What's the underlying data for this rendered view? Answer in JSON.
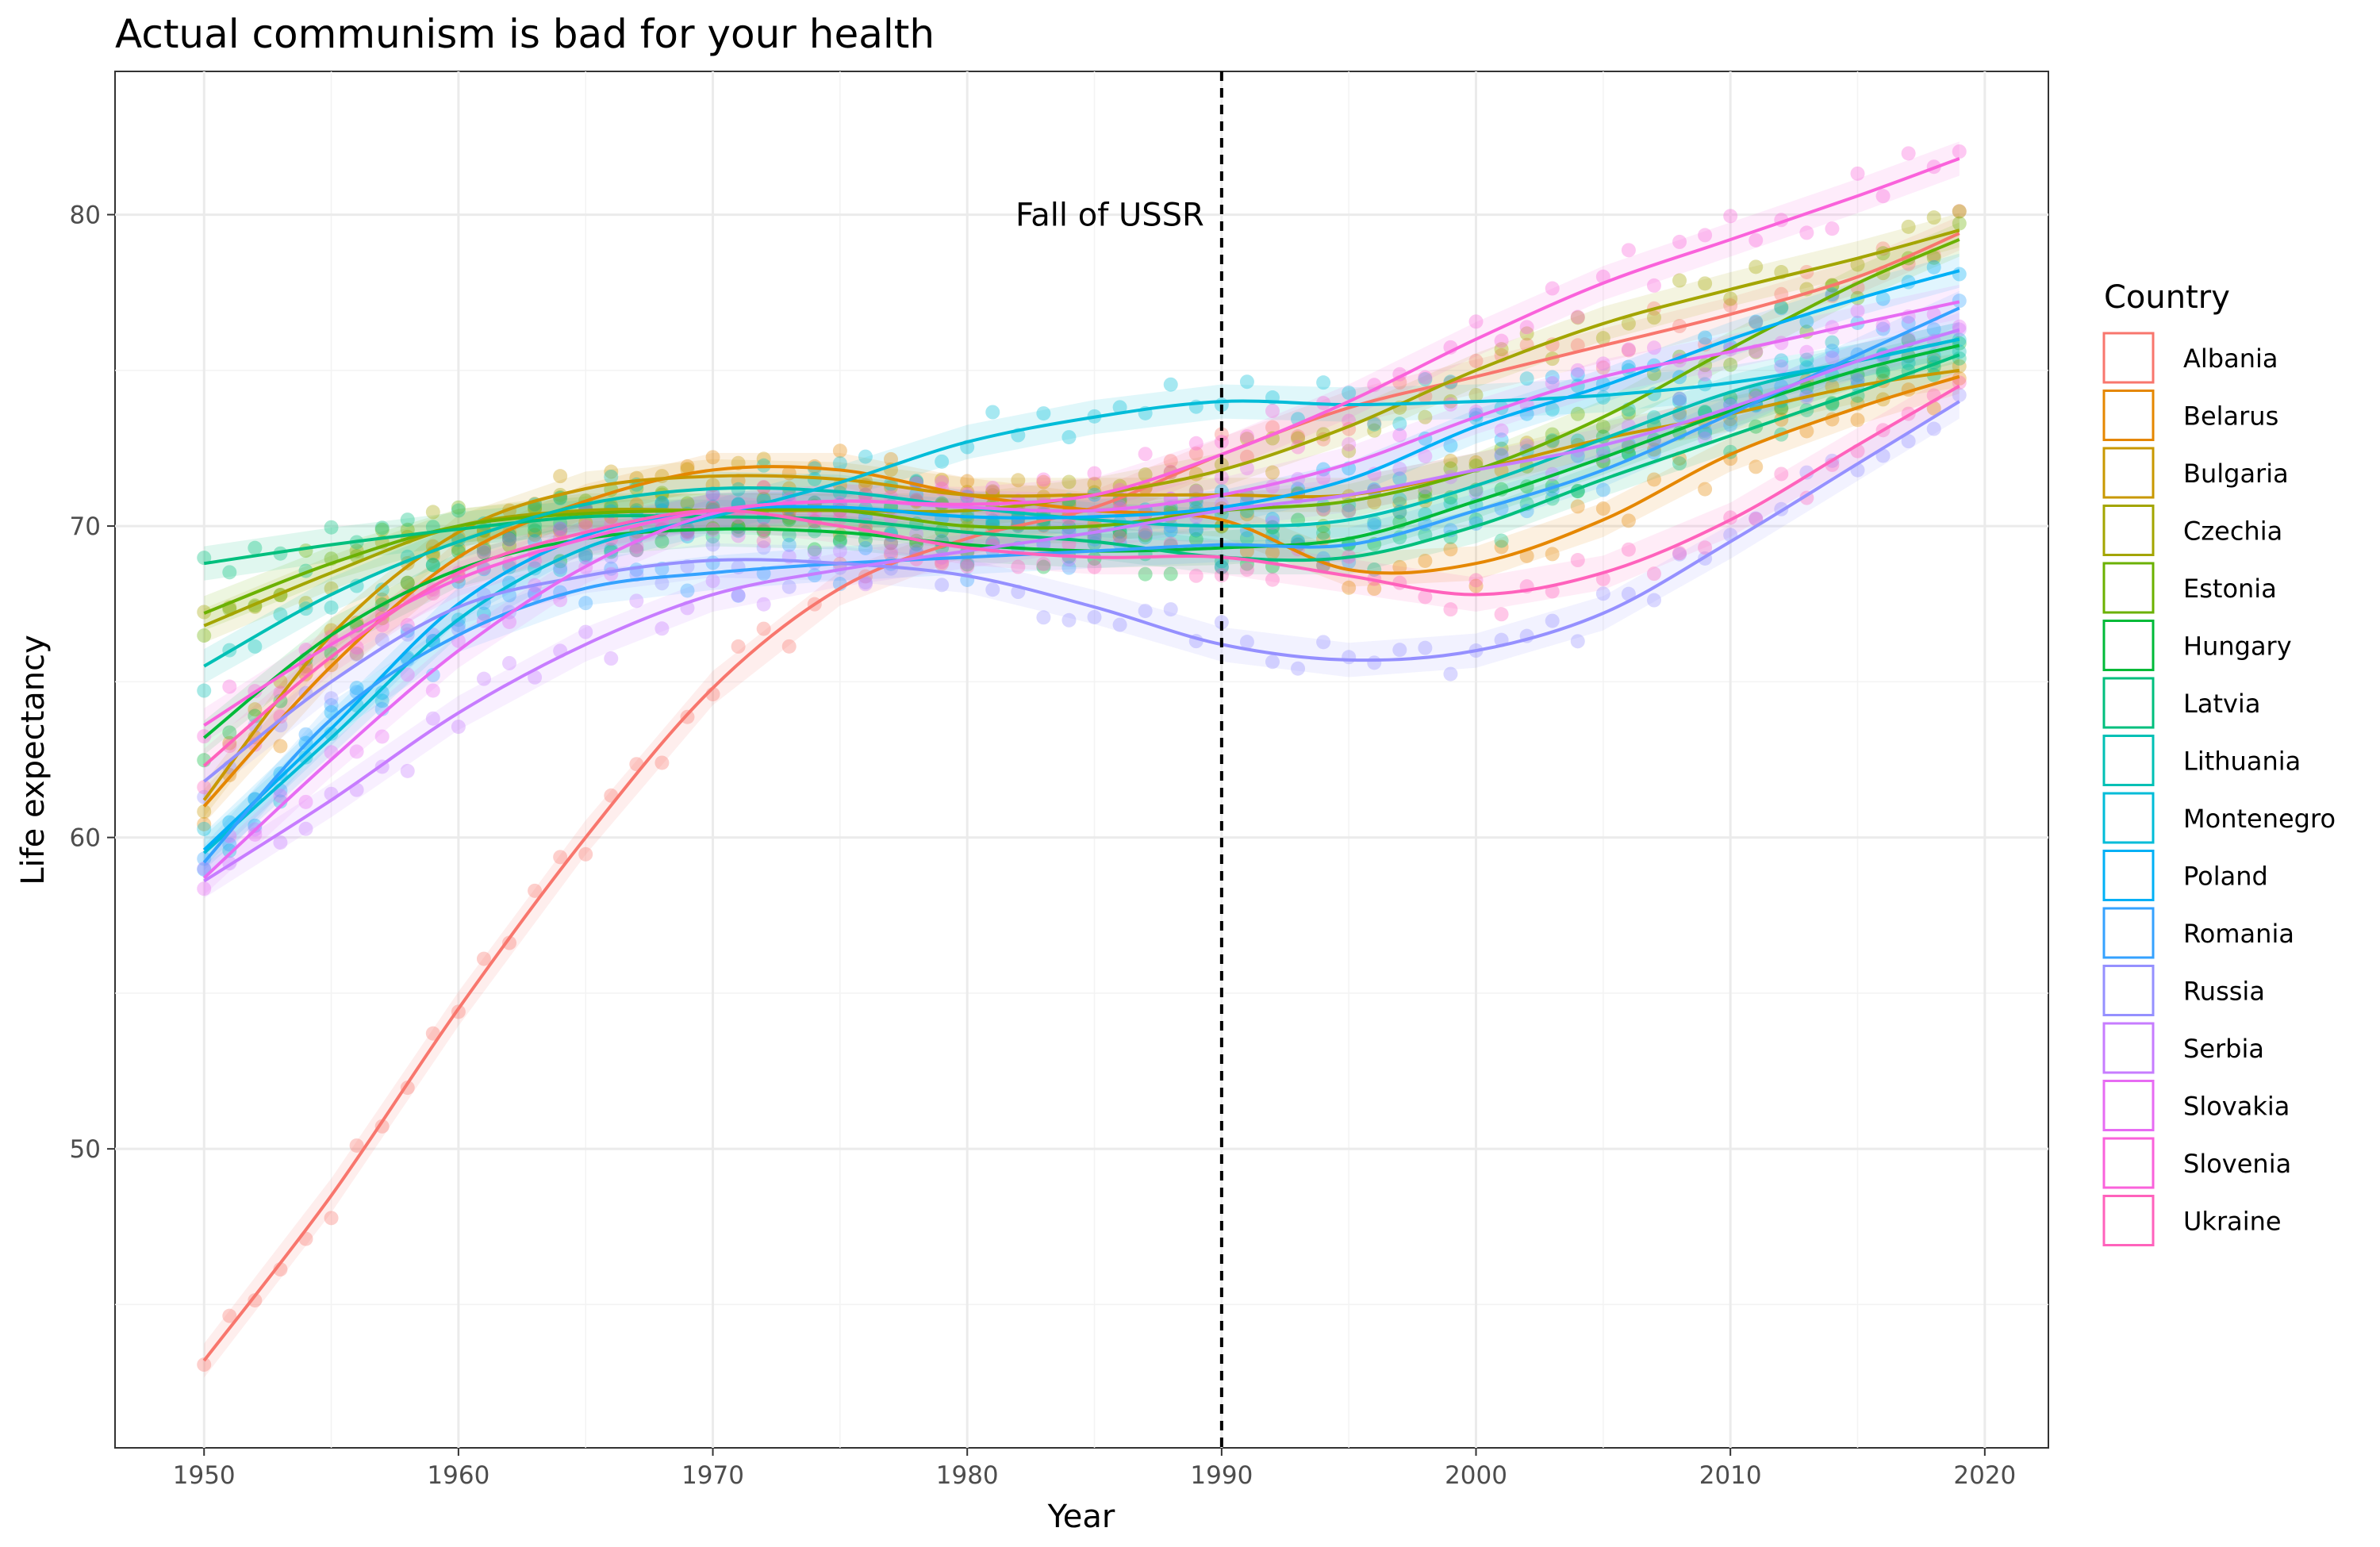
{
  "chart_data": {
    "type": "scatter",
    "title": "Actual communism is bad for your health",
    "xlabel": "Year",
    "ylabel": "Life expectancy",
    "xlim": [
      1946.5,
      2022.5
    ],
    "ylim": [
      40.4,
      84.6
    ],
    "x_ticks": [
      1950,
      1960,
      1970,
      1980,
      1990,
      2000,
      2010,
      2020
    ],
    "y_ticks": [
      50,
      60,
      70,
      80
    ],
    "grid": true,
    "legend_title": "Country",
    "legend_position": "right",
    "annotation": {
      "text": "Fall of USSR",
      "x": 1990,
      "y": 80,
      "line_x": 1990,
      "line_style": "dashed"
    },
    "series": [
      {
        "name": "Albania",
        "color": "#F8766D",
        "points": [
          [
            1950,
            43.2
          ],
          [
            1955,
            48.5
          ],
          [
            1960,
            54.5
          ],
          [
            1965,
            60.0
          ],
          [
            1970,
            64.8
          ],
          [
            1975,
            68.0
          ],
          [
            1980,
            69.6
          ],
          [
            1985,
            70.6
          ],
          [
            1990,
            72.3
          ],
          [
            1995,
            73.8
          ],
          [
            2000,
            74.8
          ],
          [
            2005,
            75.8
          ],
          [
            2010,
            76.8
          ],
          [
            2015,
            78.0
          ],
          [
            2019,
            79.4
          ]
        ]
      },
      {
        "name": "Belarus",
        "color": "#E58700",
        "points": [
          [
            1950,
            61.0
          ],
          [
            1955,
            65.5
          ],
          [
            1960,
            69.0
          ],
          [
            1965,
            70.8
          ],
          [
            1970,
            71.8
          ],
          [
            1975,
            71.8
          ],
          [
            1980,
            71.0
          ],
          [
            1985,
            70.5
          ],
          [
            1990,
            70.2
          ],
          [
            1995,
            68.6
          ],
          [
            2000,
            68.8
          ],
          [
            2005,
            70.2
          ],
          [
            2010,
            72.3
          ],
          [
            2015,
            73.8
          ],
          [
            2019,
            74.8
          ]
        ]
      },
      {
        "name": "Bulgaria",
        "color": "#C99800",
        "points": [
          [
            1950,
            61.2
          ],
          [
            1955,
            66.5
          ],
          [
            1960,
            69.8
          ],
          [
            1965,
            71.2
          ],
          [
            1970,
            71.6
          ],
          [
            1975,
            71.5
          ],
          [
            1980,
            71.0
          ],
          [
            1985,
            71.0
          ],
          [
            1990,
            71.0
          ],
          [
            1995,
            71.0
          ],
          [
            2000,
            71.8
          ],
          [
            2005,
            72.8
          ],
          [
            2010,
            73.6
          ],
          [
            2015,
            74.5
          ],
          [
            2019,
            75.0
          ]
        ]
      },
      {
        "name": "Czechia",
        "color": "#A3A500",
        "points": [
          [
            1950,
            66.8
          ],
          [
            1955,
            68.5
          ],
          [
            1960,
            70.0
          ],
          [
            1965,
            70.5
          ],
          [
            1970,
            70.5
          ],
          [
            1975,
            70.5
          ],
          [
            1980,
            70.5
          ],
          [
            1985,
            71.0
          ],
          [
            1990,
            71.8
          ],
          [
            1995,
            73.2
          ],
          [
            2000,
            75.0
          ],
          [
            2005,
            76.5
          ],
          [
            2010,
            77.6
          ],
          [
            2015,
            78.6
          ],
          [
            2019,
            79.5
          ]
        ]
      },
      {
        "name": "Estonia",
        "color": "#6BB100",
        "points": [
          [
            1950,
            67.2
          ],
          [
            1955,
            68.8
          ],
          [
            1960,
            70.0
          ],
          [
            1965,
            70.4
          ],
          [
            1970,
            70.5
          ],
          [
            1975,
            70.5
          ],
          [
            1980,
            70.0
          ],
          [
            1985,
            70.0
          ],
          [
            1990,
            70.5
          ],
          [
            1995,
            70.8
          ],
          [
            2000,
            71.8
          ],
          [
            2005,
            73.5
          ],
          [
            2010,
            75.7
          ],
          [
            2015,
            77.8
          ],
          [
            2019,
            79.2
          ]
        ]
      },
      {
        "name": "Hungary",
        "color": "#00BA38",
        "points": [
          [
            1950,
            63.2
          ],
          [
            1955,
            66.5
          ],
          [
            1960,
            68.6
          ],
          [
            1965,
            69.6
          ],
          [
            1970,
            69.9
          ],
          [
            1975,
            69.8
          ],
          [
            1980,
            69.4
          ],
          [
            1985,
            69.2
          ],
          [
            1990,
            69.3
          ],
          [
            1995,
            69.6
          ],
          [
            2000,
            70.8
          ],
          [
            2005,
            72.2
          ],
          [
            2010,
            73.7
          ],
          [
            2015,
            75.0
          ],
          [
            2019,
            75.8
          ]
        ]
      },
      {
        "name": "Latvia",
        "color": "#00BF7D",
        "points": [
          [
            1950,
            68.8
          ],
          [
            1955,
            69.4
          ],
          [
            1960,
            69.9
          ],
          [
            1965,
            70.3
          ],
          [
            1970,
            70.3
          ],
          [
            1975,
            70.2
          ],
          [
            1980,
            69.8
          ],
          [
            1985,
            69.5
          ],
          [
            1990,
            69.0
          ],
          [
            1995,
            69.0
          ],
          [
            2000,
            70.0
          ],
          [
            2005,
            71.5
          ],
          [
            2010,
            72.9
          ],
          [
            2015,
            74.3
          ],
          [
            2019,
            75.5
          ]
        ]
      },
      {
        "name": "Lithuania",
        "color": "#00C0B5",
        "points": [
          [
            1950,
            65.5
          ],
          [
            1955,
            67.8
          ],
          [
            1960,
            69.5
          ],
          [
            1965,
            70.7
          ],
          [
            1970,
            71.2
          ],
          [
            1975,
            71.1
          ],
          [
            1980,
            70.6
          ],
          [
            1985,
            70.2
          ],
          [
            1990,
            70.0
          ],
          [
            1995,
            70.2
          ],
          [
            2000,
            71.3
          ],
          [
            2005,
            72.8
          ],
          [
            2010,
            74.3
          ],
          [
            2015,
            75.3
          ],
          [
            2019,
            76.0
          ]
        ]
      },
      {
        "name": "Montenegro",
        "color": "#00BCD8",
        "points": [
          [
            1950,
            59.5
          ],
          [
            1955,
            63.2
          ],
          [
            1960,
            67.0
          ],
          [
            1965,
            69.3
          ],
          [
            1970,
            70.3
          ],
          [
            1975,
            71.4
          ],
          [
            1980,
            72.7
          ],
          [
            1985,
            73.5
          ],
          [
            1990,
            74.0
          ],
          [
            1995,
            73.9
          ],
          [
            2000,
            74.0
          ],
          [
            2005,
            74.2
          ],
          [
            2010,
            74.6
          ],
          [
            2015,
            75.3
          ],
          [
            2019,
            76.0
          ]
        ]
      },
      {
        "name": "Poland",
        "color": "#00B0F6",
        "points": [
          [
            1950,
            59.6
          ],
          [
            1955,
            63.5
          ],
          [
            1960,
            67.5
          ],
          [
            1965,
            69.7
          ],
          [
            1970,
            70.5
          ],
          [
            1975,
            70.6
          ],
          [
            1980,
            70.3
          ],
          [
            1985,
            70.3
          ],
          [
            1990,
            70.6
          ],
          [
            1995,
            71.5
          ],
          [
            2000,
            73.2
          ],
          [
            2005,
            74.5
          ],
          [
            2010,
            76.0
          ],
          [
            2015,
            77.3
          ],
          [
            2019,
            78.2
          ]
        ]
      },
      {
        "name": "Romania",
        "color": "#35A2FF",
        "points": [
          [
            1950,
            59.2
          ],
          [
            1955,
            63.8
          ],
          [
            1960,
            66.5
          ],
          [
            1965,
            68.0
          ],
          [
            1970,
            68.5
          ],
          [
            1975,
            68.8
          ],
          [
            1980,
            69.0
          ],
          [
            1985,
            69.2
          ],
          [
            1990,
            69.4
          ],
          [
            1995,
            69.4
          ],
          [
            2000,
            70.5
          ],
          [
            2005,
            71.8
          ],
          [
            2010,
            73.6
          ],
          [
            2015,
            75.5
          ],
          [
            2019,
            77.0
          ]
        ]
      },
      {
        "name": "Russia",
        "color": "#9590FF",
        "points": [
          [
            1950,
            61.8
          ],
          [
            1955,
            65.0
          ],
          [
            1960,
            67.4
          ],
          [
            1965,
            68.4
          ],
          [
            1970,
            68.9
          ],
          [
            1975,
            68.8
          ],
          [
            1980,
            68.4
          ],
          [
            1985,
            67.4
          ],
          [
            1990,
            66.2
          ],
          [
            1995,
            65.7
          ],
          [
            2000,
            66.0
          ],
          [
            2005,
            67.2
          ],
          [
            2010,
            69.5
          ],
          [
            2015,
            72.0
          ],
          [
            2019,
            74.0
          ]
        ]
      },
      {
        "name": "Serbia",
        "color": "#C77CFF",
        "points": [
          [
            1950,
            58.6
          ],
          [
            1955,
            61.2
          ],
          [
            1960,
            64.0
          ],
          [
            1965,
            66.2
          ],
          [
            1970,
            67.8
          ],
          [
            1975,
            68.6
          ],
          [
            1980,
            69.2
          ],
          [
            1985,
            69.8
          ],
          [
            1990,
            70.5
          ],
          [
            1995,
            71.0
          ],
          [
            2000,
            71.8
          ],
          [
            2005,
            72.6
          ],
          [
            2010,
            73.8
          ],
          [
            2015,
            75.3
          ],
          [
            2019,
            76.3
          ]
        ]
      },
      {
        "name": "Slovakia",
        "color": "#E76BF3",
        "points": [
          [
            1950,
            58.7
          ],
          [
            1955,
            62.5
          ],
          [
            1960,
            66.0
          ],
          [
            1965,
            68.7
          ],
          [
            1970,
            70.4
          ],
          [
            1975,
            70.8
          ],
          [
            1980,
            70.6
          ],
          [
            1985,
            70.5
          ],
          [
            1990,
            71.0
          ],
          [
            1995,
            72.0
          ],
          [
            2000,
            73.5
          ],
          [
            2005,
            74.8
          ],
          [
            2010,
            75.6
          ],
          [
            2015,
            76.5
          ],
          [
            2019,
            77.2
          ]
        ]
      },
      {
        "name": "Slovenia",
        "color": "#FA62DB",
        "points": [
          [
            1950,
            63.6
          ],
          [
            1955,
            66.2
          ],
          [
            1960,
            68.3
          ],
          [
            1965,
            69.6
          ],
          [
            1970,
            70.5
          ],
          [
            1975,
            70.8
          ],
          [
            1980,
            70.7
          ],
          [
            1985,
            71.0
          ],
          [
            1990,
            72.3
          ],
          [
            1995,
            74.0
          ],
          [
            2000,
            76.0
          ],
          [
            2005,
            77.8
          ],
          [
            2010,
            79.2
          ],
          [
            2015,
            80.6
          ],
          [
            2019,
            81.8
          ]
        ]
      },
      {
        "name": "Ukraine",
        "color": "#FF62BC",
        "points": [
          [
            1950,
            62.3
          ],
          [
            1955,
            65.8
          ],
          [
            1960,
            68.5
          ],
          [
            1965,
            69.8
          ],
          [
            1970,
            70.5
          ],
          [
            1975,
            70.0
          ],
          [
            1980,
            69.3
          ],
          [
            1985,
            69.0
          ],
          [
            1990,
            69.0
          ],
          [
            1995,
            68.4
          ],
          [
            2000,
            67.8
          ],
          [
            2005,
            68.5
          ],
          [
            2010,
            70.2
          ],
          [
            2015,
            72.6
          ],
          [
            2019,
            74.5
          ]
        ]
      }
    ]
  }
}
